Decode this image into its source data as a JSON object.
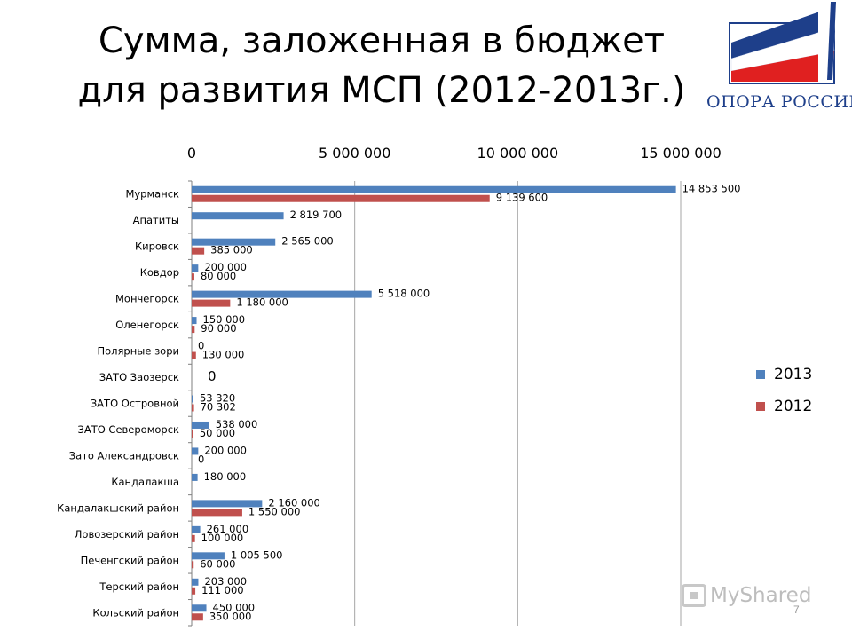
{
  "slide": {
    "title_line1": "Сумма, заложенная в бюджет",
    "title_line2": "для развития МСП (2012-2013г.)",
    "logo_text": "ОПОРА РОССИИ",
    "watermark": "MyShared",
    "page_number": "7"
  },
  "colors": {
    "series_2013": "#4f81bd",
    "series_2012": "#c0504d",
    "gridline": "#a6a6a6"
  },
  "chart_data": {
    "type": "bar",
    "orientation": "horizontal",
    "title": "",
    "xlim": [
      0,
      15000000
    ],
    "x_ticks": [
      0,
      5000000,
      10000000,
      15000000
    ],
    "x_tick_labels": [
      "0",
      "5 000 000",
      "10 000 000",
      "15 000 000"
    ],
    "x_axis_position": "top",
    "grid": true,
    "legend_position": "right",
    "categories": [
      "Мурманск",
      "Апатиты",
      "Кировск",
      "Ковдор",
      "Мончегорск",
      "Оленегорск",
      "Полярные зори",
      "ЗАТО Заозерск",
      "ЗАТО Островной",
      "ЗАТО Североморск",
      "Зато Александровск",
      "Кандалакша",
      "Кандалакшский район",
      "Ловозерский район",
      "Печенгский район",
      "Терский район",
      "Кольский район"
    ],
    "series": [
      {
        "name": "2013",
        "values": [
          14853500,
          2819700,
          2565000,
          200000,
          5518000,
          150000,
          0,
          null,
          53320,
          538000,
          200000,
          180000,
          2160000,
          261000,
          1005500,
          203000,
          450000
        ],
        "labels": [
          "14 853 500",
          "2 819 700",
          "2 565 000",
          "200 000",
          "5 518 000",
          "150 000",
          "0",
          "",
          "53 320",
          "538 000",
          "200 000",
          "180 000",
          "2 160 000",
          "261 000",
          "1 005 500",
          "203 000",
          "450 000"
        ]
      },
      {
        "name": "2012",
        "values": [
          9139600,
          null,
          385000,
          80000,
          1180000,
          90000,
          130000,
          null,
          70302,
          50000,
          0,
          null,
          1550000,
          100000,
          60000,
          111000,
          350000
        ],
        "labels": [
          "9 139 600",
          "",
          "385 000",
          "80 000",
          "1 180 000",
          "90 000",
          "130 000",
          "",
          "70 302",
          "50 000",
          "0",
          "",
          "1 550 000",
          "100 000",
          "60 000",
          "111 000",
          "350 000"
        ]
      }
    ],
    "annotations": [
      {
        "category": "ЗАТО Заозерск",
        "text": "0"
      }
    ]
  }
}
